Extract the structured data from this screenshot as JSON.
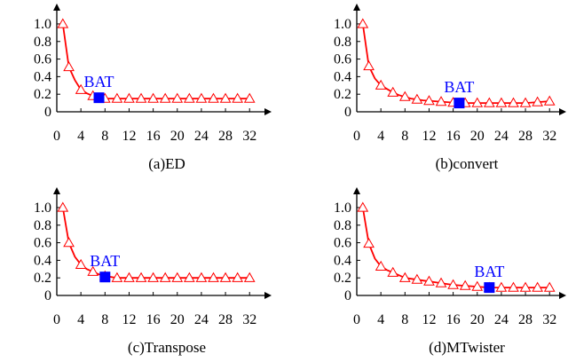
{
  "chart_data": [
    {
      "type": "line",
      "caption": "(a)ED",
      "x": [
        1,
        2,
        3,
        4,
        5,
        6,
        7,
        8,
        9,
        10,
        11,
        12,
        13,
        14,
        15,
        16,
        17,
        18,
        19,
        20,
        21,
        22,
        23,
        24,
        25,
        26,
        27,
        28,
        29,
        30,
        31,
        32
      ],
      "values": [
        1.0,
        0.51,
        0.36,
        0.25,
        0.21,
        0.18,
        0.16,
        0.15,
        0.15,
        0.15,
        0.15,
        0.15,
        0.15,
        0.15,
        0.15,
        0.15,
        0.15,
        0.15,
        0.15,
        0.15,
        0.15,
        0.15,
        0.15,
        0.15,
        0.15,
        0.15,
        0.15,
        0.15,
        0.15,
        0.15,
        0.15,
        0.15
      ],
      "marker_x": [
        1,
        2,
        4,
        6,
        8,
        10,
        12,
        14,
        16,
        18,
        20,
        22,
        24,
        26,
        28,
        30,
        32
      ],
      "highlight": {
        "label": "BAT",
        "x": 7,
        "y": 0.16
      },
      "x_ticks": [
        0,
        4,
        8,
        12,
        16,
        20,
        24,
        28,
        32
      ],
      "y_ticks": [
        0,
        0.2,
        0.4,
        0.6,
        0.8,
        1.0
      ],
      "y_tick_labels": [
        "0",
        "0.2",
        "0.4",
        "0.6",
        "0.8",
        "1.0"
      ],
      "xlim": [
        0,
        33
      ],
      "ylim": [
        0,
        1.05
      ]
    },
    {
      "type": "line",
      "caption": "(b)convert",
      "x": [
        1,
        2,
        3,
        4,
        5,
        6,
        7,
        8,
        9,
        10,
        11,
        12,
        13,
        14,
        15,
        16,
        17,
        18,
        19,
        20,
        21,
        22,
        23,
        24,
        25,
        26,
        27,
        28,
        29,
        30,
        31,
        32
      ],
      "values": [
        1.0,
        0.52,
        0.38,
        0.3,
        0.26,
        0.22,
        0.19,
        0.17,
        0.15,
        0.14,
        0.13,
        0.125,
        0.12,
        0.115,
        0.11,
        0.105,
        0.1,
        0.1,
        0.1,
        0.1,
        0.1,
        0.1,
        0.1,
        0.1,
        0.1,
        0.1,
        0.1,
        0.1,
        0.105,
        0.11,
        0.115,
        0.12
      ],
      "marker_x": [
        1,
        2,
        4,
        6,
        8,
        10,
        12,
        14,
        16,
        18,
        20,
        22,
        24,
        26,
        28,
        30,
        32
      ],
      "highlight": {
        "label": "BAT",
        "x": 17,
        "y": 0.1
      },
      "x_ticks": [
        0,
        4,
        8,
        12,
        16,
        20,
        24,
        28,
        32
      ],
      "y_ticks": [
        0,
        0.2,
        0.4,
        0.6,
        0.8,
        1.0
      ],
      "y_tick_labels": [
        "0",
        "0.2",
        "0.4",
        "0.6",
        "0.8",
        "1.0"
      ],
      "xlim": [
        0,
        33
      ],
      "ylim": [
        0,
        1.05
      ]
    },
    {
      "type": "line",
      "caption": "(c)Transpose",
      "x": [
        1,
        2,
        3,
        4,
        5,
        6,
        7,
        8,
        9,
        10,
        11,
        12,
        13,
        14,
        15,
        16,
        17,
        18,
        19,
        20,
        21,
        22,
        23,
        24,
        25,
        26,
        27,
        28,
        29,
        30,
        31,
        32
      ],
      "values": [
        1.0,
        0.6,
        0.44,
        0.35,
        0.3,
        0.27,
        0.24,
        0.22,
        0.21,
        0.2,
        0.2,
        0.2,
        0.2,
        0.2,
        0.2,
        0.2,
        0.2,
        0.2,
        0.2,
        0.2,
        0.2,
        0.2,
        0.2,
        0.2,
        0.2,
        0.2,
        0.2,
        0.2,
        0.2,
        0.2,
        0.2,
        0.2
      ],
      "marker_x": [
        1,
        2,
        4,
        6,
        8,
        10,
        12,
        14,
        16,
        18,
        20,
        22,
        24,
        26,
        28,
        30,
        32
      ],
      "highlight": {
        "label": "BAT",
        "x": 8,
        "y": 0.21
      },
      "x_ticks": [
        0,
        4,
        8,
        12,
        16,
        20,
        24,
        28,
        32
      ],
      "y_ticks": [
        0,
        0.2,
        0.4,
        0.6,
        0.8,
        1.0
      ],
      "y_tick_labels": [
        "0",
        "0.2",
        "0.4",
        "0.6",
        "0.8",
        "1.0"
      ],
      "xlim": [
        0,
        33
      ],
      "ylim": [
        0,
        1.05
      ]
    },
    {
      "type": "line",
      "caption": "(d)MTwister",
      "x": [
        1,
        2,
        3,
        4,
        5,
        6,
        7,
        8,
        9,
        10,
        11,
        12,
        13,
        14,
        15,
        16,
        17,
        18,
        19,
        20,
        21,
        22,
        23,
        24,
        25,
        26,
        27,
        28,
        29,
        30,
        31,
        32
      ],
      "values": [
        1.0,
        0.59,
        0.42,
        0.33,
        0.29,
        0.26,
        0.23,
        0.2,
        0.19,
        0.18,
        0.17,
        0.16,
        0.15,
        0.14,
        0.13,
        0.12,
        0.115,
        0.11,
        0.105,
        0.1,
        0.095,
        0.09,
        0.09,
        0.09,
        0.09,
        0.09,
        0.09,
        0.09,
        0.09,
        0.09,
        0.09,
        0.09
      ],
      "marker_x": [
        1,
        2,
        4,
        6,
        8,
        10,
        12,
        14,
        16,
        18,
        20,
        22,
        24,
        26,
        28,
        30,
        32
      ],
      "highlight": {
        "label": "BAT",
        "x": 22,
        "y": 0.09
      },
      "x_ticks": [
        0,
        4,
        8,
        12,
        16,
        20,
        24,
        28,
        32
      ],
      "y_ticks": [
        0,
        0.2,
        0.4,
        0.6,
        0.8,
        1.0
      ],
      "y_tick_labels": [
        "0",
        "0.2",
        "0.4",
        "0.6",
        "0.8",
        "1.0"
      ],
      "xlim": [
        0,
        33
      ],
      "ylim": [
        0,
        1.05
      ]
    }
  ],
  "colors": {
    "line": "#ff0000",
    "marker_stroke": "#ff0000",
    "highlight": "#0000ff",
    "axis": "#000000"
  }
}
